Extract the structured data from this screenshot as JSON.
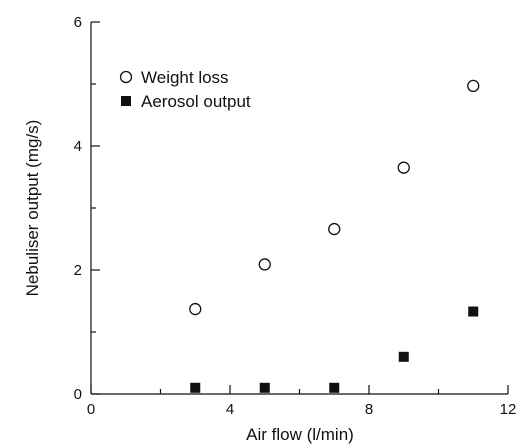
{
  "chart_data": {
    "type": "scatter",
    "title": "",
    "xlabel": "Air flow (l/min)",
    "ylabel": "Nebuliser output (mg/s)",
    "xlim": [
      0,
      12
    ],
    "ylim": [
      0,
      6
    ],
    "x_ticks": [
      0,
      4,
      8,
      12
    ],
    "y_ticks": [
      0,
      2,
      4,
      6
    ],
    "x_minor_ticks": [
      2,
      6,
      10
    ],
    "y_minor_ticks": [
      1,
      3,
      5
    ],
    "grid": false,
    "legend_position": "top-left",
    "series": [
      {
        "name": "Weight loss",
        "marker": "open-circle",
        "color": "#111111",
        "points": [
          {
            "x": 3,
            "y": 1.37
          },
          {
            "x": 5,
            "y": 2.09
          },
          {
            "x": 7,
            "y": 2.66
          },
          {
            "x": 9,
            "y": 3.65
          },
          {
            "x": 11,
            "y": 4.97
          }
        ]
      },
      {
        "name": "Aerosol output",
        "marker": "filled-square",
        "color": "#111111",
        "points": [
          {
            "x": 3,
            "y": 0.1
          },
          {
            "x": 5,
            "y": 0.1
          },
          {
            "x": 7,
            "y": 0.1
          },
          {
            "x": 9,
            "y": 0.6
          },
          {
            "x": 11,
            "y": 1.33
          }
        ]
      }
    ]
  }
}
